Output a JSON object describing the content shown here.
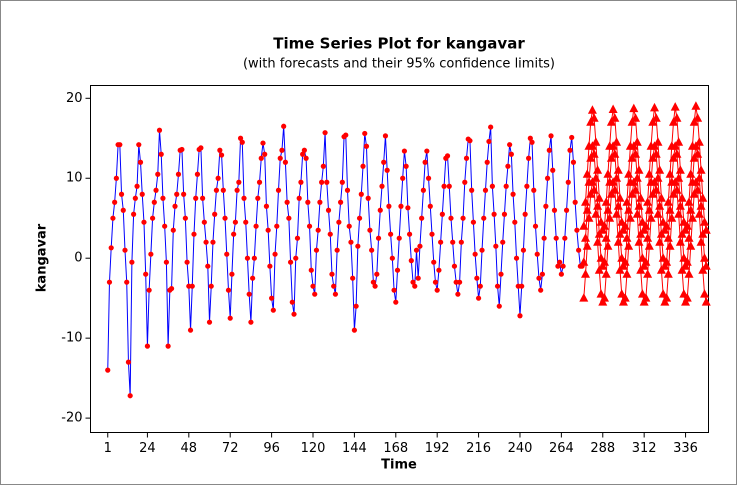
{
  "chart_data": {
    "type": "line",
    "title": "Time Series Plot for kangavar",
    "subtitle": "(with forecasts and their 95% confidence limits)",
    "x_label": "Time",
    "y_label": "kangavar",
    "xlim": [
      -9,
      349.3
    ],
    "ylim": [
      -21.8,
      21.6
    ],
    "xticks": [
      1,
      24,
      48,
      72,
      96,
      120,
      144,
      168,
      192,
      216,
      240,
      264,
      288,
      312,
      336
    ],
    "yticks": [
      -20,
      -10,
      0,
      10,
      20
    ],
    "x": [
      1,
      2,
      3,
      4,
      5,
      6,
      7,
      8,
      9,
      10,
      11,
      12,
      13,
      14,
      15,
      16,
      17,
      18,
      19,
      20,
      21,
      22,
      23,
      24,
      25,
      26,
      27,
      28,
      29,
      30,
      31,
      32,
      33,
      34,
      35,
      36,
      37,
      38,
      39,
      40,
      41,
      42,
      43,
      44,
      45,
      46,
      47,
      48,
      49,
      50,
      51,
      52,
      53,
      54,
      55,
      56,
      57,
      58,
      59,
      60,
      61,
      62,
      63,
      64,
      65,
      66,
      67,
      68,
      69,
      70,
      71,
      72,
      73,
      74,
      75,
      76,
      77,
      78,
      79,
      80,
      81,
      82,
      83,
      84,
      85,
      86,
      87,
      88,
      89,
      90,
      91,
      92,
      93,
      94,
      95,
      96,
      97,
      98,
      99,
      100,
      101,
      102,
      103,
      104,
      105,
      106,
      107,
      108,
      109,
      110,
      111,
      112,
      113,
      114,
      115,
      116,
      117,
      118,
      119,
      120,
      121,
      122,
      123,
      124,
      125,
      126,
      127,
      128,
      129,
      130,
      131,
      132,
      133,
      134,
      135,
      136,
      137,
      138,
      139,
      140,
      141,
      142,
      143,
      144,
      145,
      146,
      147,
      148,
      149,
      150,
      151,
      152,
      153,
      154,
      155,
      156,
      157,
      158,
      159,
      160,
      161,
      162,
      163,
      164,
      165,
      166,
      167,
      168,
      169,
      170,
      171,
      172,
      173,
      174,
      175,
      176,
      177,
      178,
      179,
      180,
      181,
      182,
      183,
      184,
      185,
      186,
      187,
      188,
      189,
      190,
      191,
      192,
      193,
      194,
      195,
      196,
      197,
      198,
      199,
      200,
      201,
      202,
      203,
      204,
      205,
      206,
      207,
      208,
      209,
      210,
      211,
      212,
      213,
      214,
      215,
      216,
      217,
      218,
      219,
      220,
      221,
      222,
      223,
      224,
      225,
      226,
      227,
      228,
      229,
      230,
      231,
      232,
      233,
      234,
      235,
      236,
      237,
      238,
      239,
      240,
      241,
      242,
      243,
      244,
      245,
      246,
      247,
      248,
      249,
      250,
      251,
      252,
      253,
      254,
      255,
      256,
      257,
      258,
      259,
      260,
      261,
      262,
      263,
      264,
      265,
      266,
      267,
      268,
      269,
      270,
      271,
      272,
      273,
      274,
      275,
      276
    ],
    "series": [
      {
        "color": "#0000ff",
        "marker_color": "#ff0000",
        "values": [
          -14,
          -3,
          1.3,
          5,
          7,
          10,
          14.2,
          14.2,
          8,
          6,
          1,
          -3,
          -13,
          -17.2,
          -0.5,
          5.5,
          7.5,
          9,
          14.2,
          12,
          8,
          4.5,
          -2,
          -11,
          -4,
          0.5,
          5,
          7,
          8.5,
          10.5,
          16,
          13,
          7.5,
          4,
          -0.5,
          -11,
          -4,
          -3.8,
          3.5,
          6.5,
          8,
          10.5,
          13.5,
          13.6,
          8,
          5,
          -0.5,
          -3.5,
          -9,
          -3.5,
          3,
          7.5,
          10.5,
          13.6,
          13.8,
          7.5,
          4.5,
          2,
          -1,
          -8,
          -3.5,
          2,
          5.5,
          8.5,
          10,
          13.5,
          12.9,
          8.5,
          5,
          0.5,
          -4,
          -7.5,
          -2,
          3,
          4.5,
          8.5,
          9.5,
          15,
          14.5,
          7.5,
          4.5,
          0,
          -4.5,
          -8,
          -2.5,
          0,
          4,
          7.5,
          9.5,
          12.5,
          14.4,
          13,
          6.5,
          3.5,
          -1,
          -5,
          -6.5,
          0.5,
          4,
          8.5,
          12.5,
          13.5,
          16.5,
          12,
          7,
          5,
          -0.5,
          -5.5,
          -7,
          0,
          2.5,
          7.5,
          9.5,
          13,
          13.5,
          12.5,
          7,
          4,
          -1.5,
          -3.5,
          -4.5,
          1,
          3.5,
          7,
          9.5,
          11.5,
          15.7,
          9.5,
          6,
          3,
          -2,
          -3.5,
          -4.5,
          1,
          4.5,
          7,
          9.5,
          15.2,
          15.4,
          8.5,
          4,
          2,
          -2.5,
          -9,
          -6,
          1.5,
          5,
          8,
          11.5,
          15.6,
          14,
          7.5,
          3.5,
          1,
          -3,
          -3.5,
          -2,
          2.5,
          6,
          9,
          12,
          15.3,
          11,
          6.5,
          3,
          0,
          -4,
          -5.5,
          -1.5,
          2.5,
          6.5,
          10,
          13.4,
          11.5,
          6.3,
          3,
          -0.3,
          -3,
          -3.5,
          1,
          -2.5,
          1.5,
          5,
          8.5,
          12,
          13.4,
          10,
          6.5,
          3,
          -0.5,
          -3,
          -4,
          -1.5,
          2,
          5.5,
          9,
          12.5,
          12.8,
          9,
          5,
          2,
          -1,
          -3,
          -4.5,
          -3,
          2,
          5,
          9.5,
          12.5,
          14.9,
          14.7,
          8.5,
          4.5,
          0.5,
          -2.5,
          -5,
          -3.5,
          1,
          5,
          8.5,
          12,
          14.6,
          16.4,
          9,
          5.5,
          1.5,
          -3.5,
          -6,
          -2,
          2,
          5.5,
          9,
          11.5,
          14.2,
          13,
          8,
          4.5,
          0,
          -3.5,
          -7.2,
          -3.5,
          1,
          5.5,
          9,
          12.5,
          15,
          14.5,
          8.5,
          4,
          0.5,
          -2.5,
          -4,
          -2,
          2.5,
          6.5,
          10,
          13.5,
          15.3,
          11,
          6,
          2.5,
          -1,
          -0.5,
          -2,
          -1,
          2.5,
          6,
          9.5,
          13.5,
          15.1,
          12,
          7,
          3.5,
          1,
          -1,
          -1
        ]
      }
    ],
    "forecast": {
      "color": "#ff0000",
      "x": [
        277,
        278,
        279,
        280,
        281,
        282,
        283,
        284,
        285,
        286,
        287,
        288,
        289,
        290,
        291,
        292,
        293,
        294,
        295,
        296,
        297,
        298,
        299,
        300,
        301,
        302,
        303,
        304,
        305,
        306,
        307,
        308,
        309,
        310,
        311,
        312,
        313,
        314,
        315,
        316,
        317,
        318,
        319,
        320,
        321,
        322,
        323,
        324,
        325,
        326,
        327,
        328,
        329,
        330,
        331,
        332,
        333,
        334,
        335,
        336,
        337,
        338,
        339,
        340,
        341,
        342,
        343,
        344,
        345,
        346,
        347,
        348
      ],
      "values": [
        -0.5,
        2.5,
        6,
        9.5,
        12.5,
        14,
        13,
        10,
        6.5,
        3,
        0,
        -1,
        -0.5,
        2.5,
        6,
        9.5,
        12.5,
        14,
        13,
        10,
        6.5,
        3,
        0,
        -1,
        -0.5,
        2.5,
        6,
        9.5,
        12.5,
        14,
        13,
        10,
        6.5,
        3,
        0,
        -1,
        -0.5,
        2.5,
        6,
        9.5,
        12.5,
        14,
        13,
        10,
        6.5,
        3,
        0,
        -1,
        -0.5,
        2.5,
        6,
        9.5,
        12.5,
        14,
        13,
        10,
        6.5,
        3,
        0,
        -1,
        -0.5,
        2.5,
        6,
        9.5,
        12.5,
        14,
        13,
        10,
        6.5,
        3,
        0,
        -1
      ],
      "upper": [
        4,
        7,
        10.5,
        14,
        17,
        18.5,
        17.5,
        14.5,
        11,
        7.5,
        4.5,
        3.5,
        4,
        7,
        10.5,
        14,
        17,
        18.6,
        17.5,
        14.5,
        11,
        7.5,
        4.5,
        3.5,
        4,
        7,
        10.5,
        14,
        17,
        18.7,
        17.5,
        14.5,
        11,
        7.5,
        4.5,
        3.5,
        4,
        7,
        10.5,
        14,
        17,
        18.8,
        17.5,
        14.5,
        11,
        7.5,
        4.5,
        3.5,
        4,
        7,
        10.5,
        14,
        17,
        18.9,
        17.5,
        14.5,
        11,
        7.5,
        4.5,
        3.5,
        4,
        7,
        10.5,
        14,
        17,
        19,
        17.5,
        14.5,
        11,
        7.5,
        4.5,
        3.5
      ],
      "lower": [
        -5,
        -2,
        1.5,
        5,
        8,
        9.5,
        8.5,
        5.5,
        2,
        -1.5,
        -4.5,
        -5.5,
        -5,
        -2,
        1.5,
        5,
        8,
        9.5,
        8.5,
        5.5,
        2,
        -1.5,
        -4.5,
        -5.5,
        -5,
        -2,
        1.5,
        5,
        8,
        9.5,
        8.5,
        5.5,
        2,
        -1.5,
        -4.5,
        -5.5,
        -5,
        -2,
        1.5,
        5,
        8,
        9.5,
        8.5,
        5.5,
        2,
        -1.5,
        -4.5,
        -5.5,
        -5,
        -2,
        1.5,
        5,
        8,
        9.5,
        8.5,
        5.5,
        2,
        -1.5,
        -4.5,
        -5.5,
        -5,
        -2,
        1.5,
        5,
        8,
        9.5,
        8.5,
        5.5,
        2,
        -1.5,
        -4.5,
        -5.5
      ]
    }
  }
}
